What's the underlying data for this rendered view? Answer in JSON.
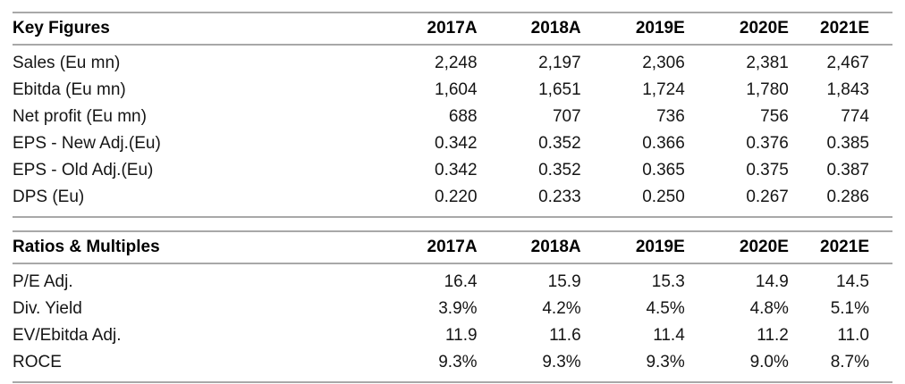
{
  "columns": [
    "2017A",
    "2018A",
    "2019E",
    "2020E",
    "2021E"
  ],
  "tables": [
    {
      "id": "key-figures",
      "title": "Key Figures",
      "rows": [
        {
          "label": "Sales (Eu mn)",
          "values": [
            "2,248",
            "2,197",
            "2,306",
            "2,381",
            "2,467"
          ]
        },
        {
          "label": "Ebitda (Eu mn)",
          "values": [
            "1,604",
            "1,651",
            "1,724",
            "1,780",
            "1,843"
          ]
        },
        {
          "label": "Net profit (Eu mn)",
          "values": [
            "688",
            "707",
            "736",
            "756",
            "774"
          ]
        },
        {
          "label": "EPS - New Adj.(Eu)",
          "values": [
            "0.342",
            "0.352",
            "0.366",
            "0.376",
            "0.385"
          ]
        },
        {
          "label": "EPS - Old Adj.(Eu)",
          "values": [
            "0.342",
            "0.352",
            "0.365",
            "0.375",
            "0.387"
          ]
        },
        {
          "label": "DPS (Eu)",
          "values": [
            "0.220",
            "0.233",
            "0.250",
            "0.267",
            "0.286"
          ]
        }
      ]
    },
    {
      "id": "ratios-multiples",
      "title": "Ratios & Multiples",
      "rows": [
        {
          "label": "P/E Adj.",
          "values": [
            "16.4",
            "15.9",
            "15.3",
            "14.9",
            "14.5"
          ]
        },
        {
          "label": "Div. Yield",
          "values": [
            "3.9%",
            "4.2%",
            "4.5%",
            "4.8%",
            "5.1%"
          ]
        },
        {
          "label": "EV/Ebitda Adj.",
          "values": [
            "11.9",
            "11.6",
            "11.4",
            "11.2",
            "11.0"
          ]
        },
        {
          "label": "ROCE",
          "values": [
            "9.3%",
            "9.3%",
            "9.3%",
            "9.0%",
            "8.7%"
          ]
        }
      ]
    }
  ],
  "chart_data": [
    {
      "type": "table",
      "title": "Key Figures",
      "categories": [
        "2017A",
        "2018A",
        "2019E",
        "2020E",
        "2021E"
      ],
      "series": [
        {
          "name": "Sales (Eu mn)",
          "values": [
            2248,
            2197,
            2306,
            2381,
            2467
          ]
        },
        {
          "name": "Ebitda (Eu mn)",
          "values": [
            1604,
            1651,
            1724,
            1780,
            1843
          ]
        },
        {
          "name": "Net profit (Eu mn)",
          "values": [
            688,
            707,
            736,
            756,
            774
          ]
        },
        {
          "name": "EPS - New Adj.(Eu)",
          "values": [
            0.342,
            0.352,
            0.366,
            0.376,
            0.385
          ]
        },
        {
          "name": "EPS - Old Adj.(Eu)",
          "values": [
            0.342,
            0.352,
            0.365,
            0.375,
            0.387
          ]
        },
        {
          "name": "DPS (Eu)",
          "values": [
            0.22,
            0.233,
            0.25,
            0.267,
            0.286
          ]
        }
      ]
    },
    {
      "type": "table",
      "title": "Ratios & Multiples",
      "categories": [
        "2017A",
        "2018A",
        "2019E",
        "2020E",
        "2021E"
      ],
      "series": [
        {
          "name": "P/E Adj.",
          "values": [
            16.4,
            15.9,
            15.3,
            14.9,
            14.5
          ]
        },
        {
          "name": "Div. Yield",
          "values": [
            "3.9%",
            "4.2%",
            "4.5%",
            "4.8%",
            "5.1%"
          ]
        },
        {
          "name": "EV/Ebitda Adj.",
          "values": [
            11.9,
            11.6,
            11.4,
            11.2,
            11.0
          ]
        },
        {
          "name": "ROCE",
          "values": [
            "9.3%",
            "9.3%",
            "9.3%",
            "9.0%",
            "8.7%"
          ]
        }
      ]
    }
  ],
  "styles": {
    "rule_color": "#a8a8a8",
    "header_text_color": "#000000",
    "body_text_color": "#151515",
    "background_color": "#ffffff"
  }
}
